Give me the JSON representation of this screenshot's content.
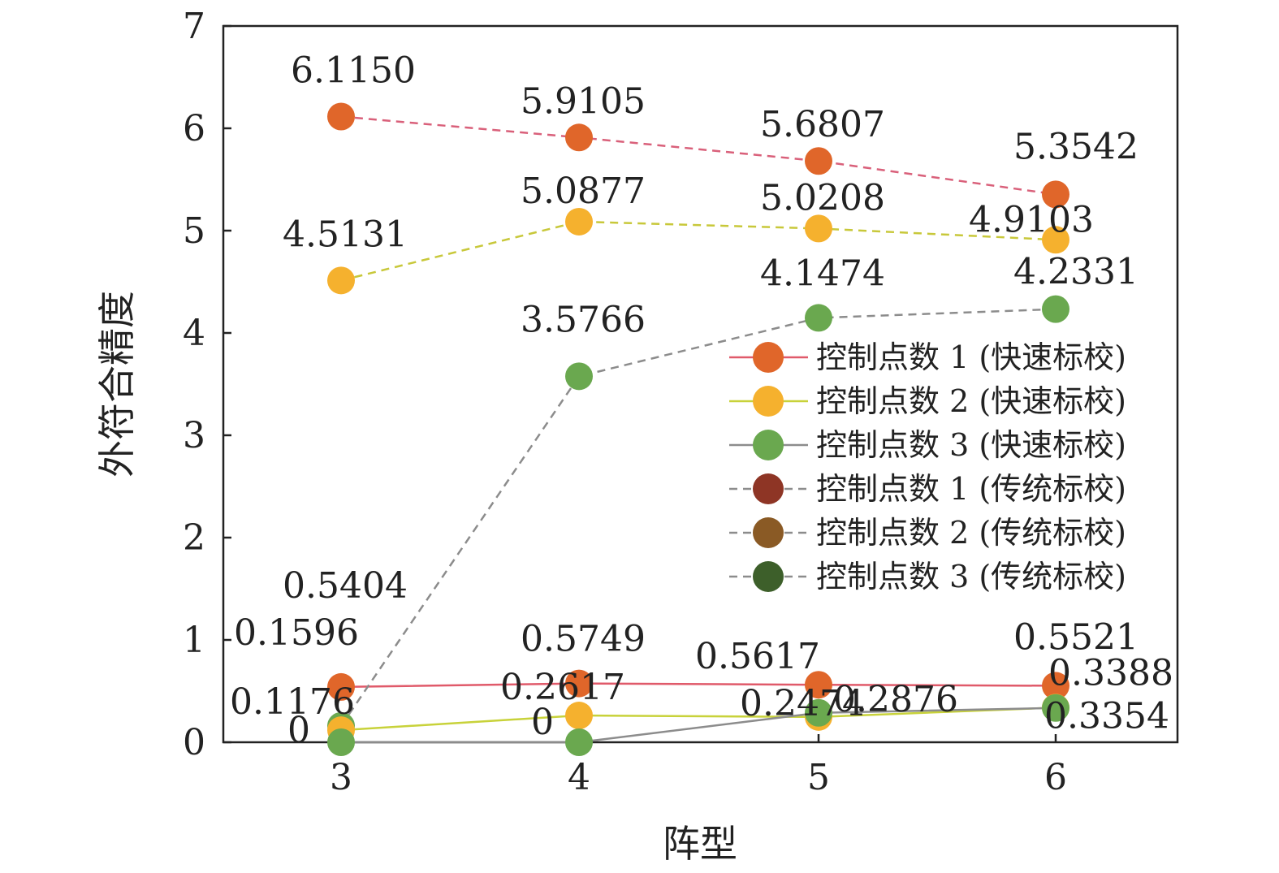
{
  "chart_data": {
    "type": "line",
    "xlabel": "阵型",
    "ylabel": "外符合精度",
    "categories": [
      "3",
      "4",
      "5",
      "6"
    ],
    "ylim": [
      0,
      7
    ],
    "yticks": [
      "0",
      "1",
      "2",
      "3",
      "4",
      "5",
      "6",
      "7"
    ],
    "legend_position": "center-right",
    "series": [
      {
        "name": "控制点数  1 (快速标校)",
        "values": [
          0.5404,
          0.5749,
          0.5617,
          0.5521
        ],
        "labels": [
          "0.5404",
          "0.5749",
          "0.5617",
          "0.5521"
        ],
        "color": "#e0662a",
        "line_color": "#e05a6a",
        "style": "solid"
      },
      {
        "name": "控制点数  2 (快速标校)",
        "values": [
          0.1176,
          0.2617,
          0.2474,
          0.3388
        ],
        "labels": [
          "0.1176",
          "0.2617",
          "0.2474",
          "0.3388"
        ],
        "color": "#f5b12e",
        "line_color": "#c8d23a",
        "style": "solid"
      },
      {
        "name": "控制点数  3 (快速标校)",
        "values": [
          0,
          0,
          0.2876,
          0.3354
        ],
        "labels": [
          "0",
          "0",
          "0.2876",
          "0.3354"
        ],
        "color": "#6aa84f",
        "line_color": "#8c8c8c",
        "style": "solid"
      },
      {
        "name": "控制点数  1 (传统标校)",
        "values": [
          6.115,
          5.9105,
          5.6807,
          5.3542
        ],
        "labels": [
          "6.1150",
          "5.9105",
          "5.6807",
          "5.3542"
        ],
        "color": "#e0662a",
        "line_color": "#d9607a",
        "style": "dashed",
        "legend_color": "#8e3525"
      },
      {
        "name": "控制点数  2 (传统标校)",
        "values": [
          4.5131,
          5.0877,
          5.0208,
          4.9103
        ],
        "labels": [
          "4.5131",
          "5.0877",
          "5.0208",
          "4.9103"
        ],
        "color": "#f5b12e",
        "line_color": "#c8c83a",
        "style": "dashed",
        "legend_color": "#8a5a25"
      },
      {
        "name": "控制点数  3 (传统标校)",
        "values": [
          0.1596,
          3.5766,
          4.1474,
          4.2331
        ],
        "labels": [
          "0.1596",
          "3.5766",
          "4.1474",
          "4.2331"
        ],
        "color": "#6aa84f",
        "line_color": "#8c8c8c",
        "style": "dashed",
        "legend_color": "#3d5f2a"
      }
    ]
  }
}
